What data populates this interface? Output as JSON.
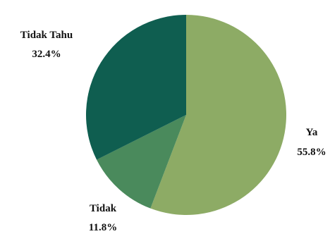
{
  "chart_data": {
    "type": "pie",
    "start_angle_deg": 0,
    "direction": "clockwise",
    "slices": [
      {
        "label": "Ya",
        "value": 55.8,
        "value_label": "55.8%",
        "color": "#8dab65"
      },
      {
        "label": "Tidak",
        "value": 11.8,
        "value_label": "11.8%",
        "color": "#4a8a5c"
      },
      {
        "label": "Tidak Tahu",
        "value": 32.4,
        "value_label": "32.4%",
        "color": "#0f5e50"
      }
    ]
  }
}
